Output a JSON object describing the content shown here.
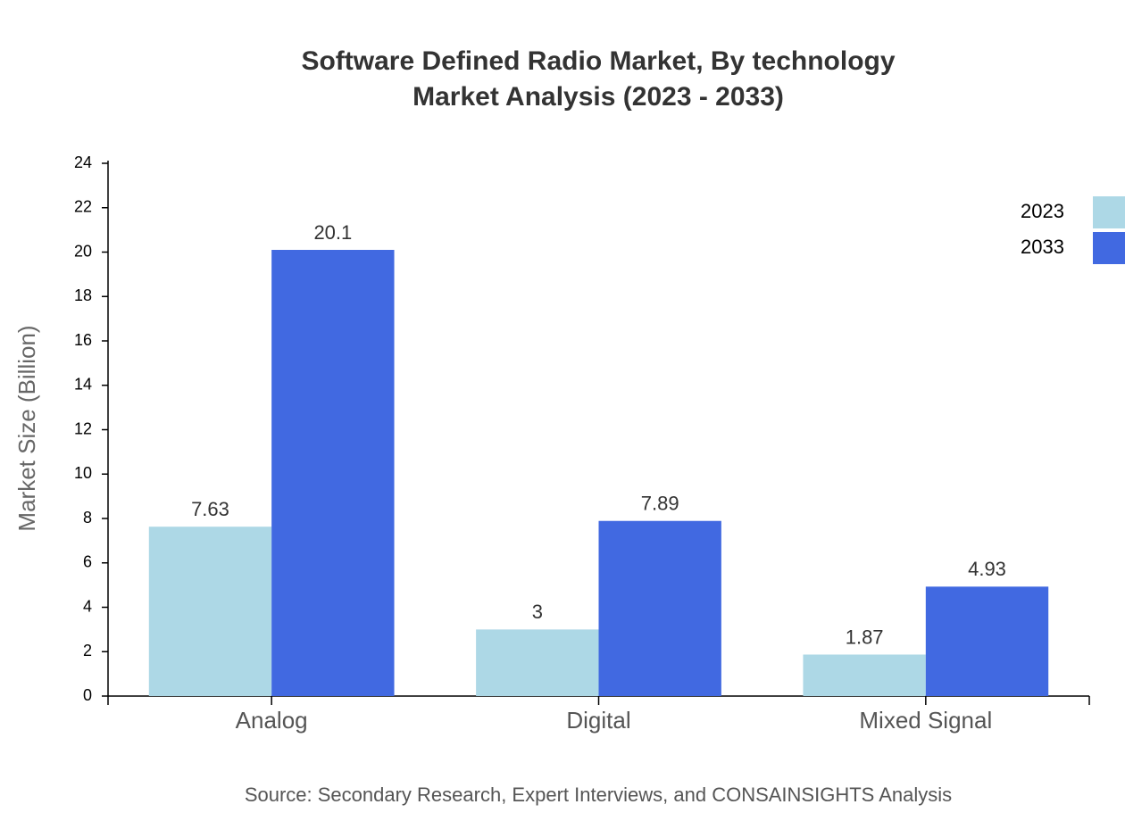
{
  "chart_data": {
    "type": "bar",
    "title": "Software Defined Radio Market, By technology",
    "subtitle": "Market Analysis (2023 - 2033)",
    "y_label": "Market Size (Billion)",
    "source": "Source: Secondary Research, Expert Interviews, and CONSAINSIGHTS Analysis",
    "categories": [
      "Analog",
      "Digital",
      "Mixed Signal"
    ],
    "series": [
      {
        "name": "2023",
        "color": "#add8e6",
        "values": [
          7.63,
          3,
          1.87
        ]
      },
      {
        "name": "2033",
        "color": "#4169e1",
        "values": [
          20.1,
          7.89,
          4.93
        ]
      }
    ],
    "ylim": [
      0,
      24
    ],
    "yticks": [
      0,
      2,
      4,
      6,
      8,
      10,
      12,
      14,
      16,
      18,
      20,
      22,
      24
    ],
    "legend": "top-right"
  }
}
